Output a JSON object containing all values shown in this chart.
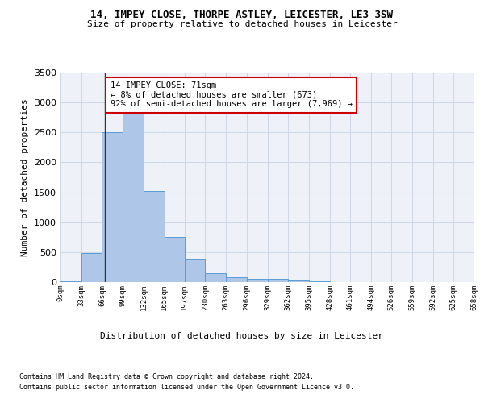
{
  "title1": "14, IMPEY CLOSE, THORPE ASTLEY, LEICESTER, LE3 3SW",
  "title2": "Size of property relative to detached houses in Leicester",
  "xlabel": "Distribution of detached houses by size in Leicester",
  "ylabel": "Number of detached properties",
  "bar_values": [
    20,
    480,
    2510,
    2820,
    1520,
    750,
    390,
    145,
    80,
    55,
    55,
    30,
    10,
    0,
    0,
    0,
    0,
    0,
    0,
    0
  ],
  "bin_edges": [
    0,
    33,
    66,
    99,
    132,
    165,
    197,
    230,
    263,
    296,
    329,
    362,
    395,
    428,
    461,
    494,
    526,
    559,
    592,
    625,
    658
  ],
  "tick_labels": [
    "0sqm",
    "33sqm",
    "66sqm",
    "99sqm",
    "132sqm",
    "165sqm",
    "197sqm",
    "230sqm",
    "263sqm",
    "296sqm",
    "329sqm",
    "362sqm",
    "395sqm",
    "428sqm",
    "461sqm",
    "494sqm",
    "526sqm",
    "559sqm",
    "592sqm",
    "625sqm",
    "658sqm"
  ],
  "bar_color": "#aec6e8",
  "bar_edge_color": "#5b9bd5",
  "grid_color": "#d0d8e8",
  "bg_color": "#eef2f8",
  "property_line_x": 71,
  "annotation_text": "14 IMPEY CLOSE: 71sqm\n← 8% of detached houses are smaller (673)\n92% of semi-detached houses are larger (7,969) →",
  "annotation_box_color": "#ffffff",
  "annotation_box_edge": "#cc0000",
  "footer1": "Contains HM Land Registry data © Crown copyright and database right 2024.",
  "footer2": "Contains public sector information licensed under the Open Government Licence v3.0.",
  "ylim": [
    0,
    3500
  ],
  "yticks": [
    0,
    500,
    1000,
    1500,
    2000,
    2500,
    3000,
    3500
  ]
}
